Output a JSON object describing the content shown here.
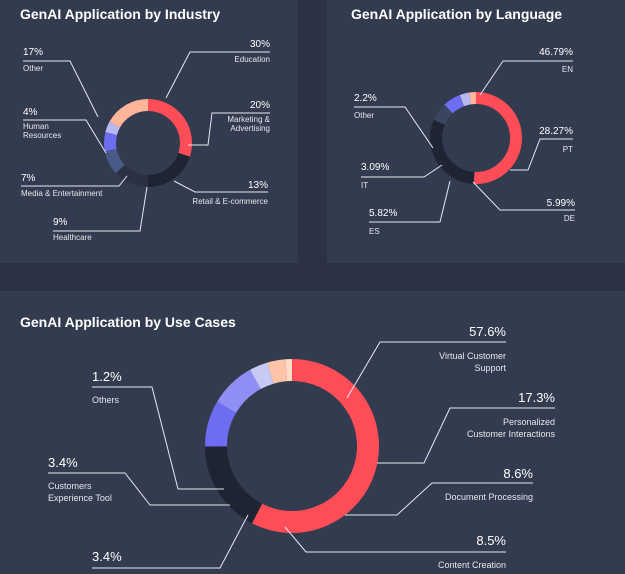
{
  "chart_data": [
    {
      "type": "pie",
      "title": "GenAI Application by Industry",
      "slices": [
        {
          "label": [
            "Education"
          ],
          "value": 30,
          "display": "30%",
          "color": "#ff4d57"
        },
        {
          "label": [
            "Marketing &",
            "Advertising"
          ],
          "value": 20,
          "display": "20%",
          "color": "#1f2433"
        },
        {
          "label": [
            "Retail & E-commerce"
          ],
          "value": 13,
          "display": "13%",
          "color": "#2a3143"
        },
        {
          "label": [
            "Healthcare"
          ],
          "value": 9,
          "display": "9%",
          "color": "#4a5a86"
        },
        {
          "label": [
            "Media & Entertainment"
          ],
          "value": 7,
          "display": "7%",
          "color": "#6e6cf0"
        },
        {
          "label": [
            "Human",
            "Resources"
          ],
          "value": 4,
          "display": "4%",
          "color": "#b8b9f2"
        },
        {
          "label": [
            "Other"
          ],
          "value": 17,
          "display": "17%",
          "color": "#ffb59a"
        }
      ]
    },
    {
      "type": "pie",
      "title": "GenAI Application by Language",
      "slices": [
        {
          "label": [
            "EN"
          ],
          "value": 46.79,
          "display": "46.79%",
          "color": "#ff4d57"
        },
        {
          "label": [
            "PT"
          ],
          "value": 28.27,
          "display": "28.27%",
          "color": "#1f2433"
        },
        {
          "label": [
            "DE"
          ],
          "value": 5.99,
          "display": "5.99%",
          "color": "#3a4560"
        },
        {
          "label": [
            "ES"
          ],
          "value": 5.82,
          "display": "5.82%",
          "color": "#6e6cf0"
        },
        {
          "label": [
            "IT"
          ],
          "value": 3.09,
          "display": "3.09%",
          "color": "#b8b9f2"
        },
        {
          "label": [
            "Other"
          ],
          "value": 2.2,
          "display": "2.2%",
          "color": "#ffb59a"
        }
      ]
    },
    {
      "type": "pie",
      "title": "GenAI Application by Use Cases",
      "slices": [
        {
          "label": [
            "Virtual Customer",
            "Support"
          ],
          "value": 57.6,
          "display": "57.6%",
          "color": "#ff4d57"
        },
        {
          "label": [
            "Personalized",
            "Customer Interactions"
          ],
          "value": 17.3,
          "display": "17.3%",
          "color": "#1f2433"
        },
        {
          "label": [
            "Document Processing"
          ],
          "value": 8.6,
          "display": "8.6%",
          "color": "#6e6cf0"
        },
        {
          "label": [
            "Content Creation"
          ],
          "value": 8.5,
          "display": "8.5%",
          "color": "#8f8ef5"
        },
        {
          "label": [],
          "value": 3.4,
          "display": "3.4%",
          "color": "#c9c9f5"
        },
        {
          "label": [
            "Customers",
            "Experience Tool"
          ],
          "value": 3.4,
          "display": "3.4%",
          "color": "#ffc3a8"
        },
        {
          "label": [
            "Others"
          ],
          "value": 1.2,
          "display": "1.2%",
          "color": "#ffdcc6"
        }
      ]
    }
  ]
}
